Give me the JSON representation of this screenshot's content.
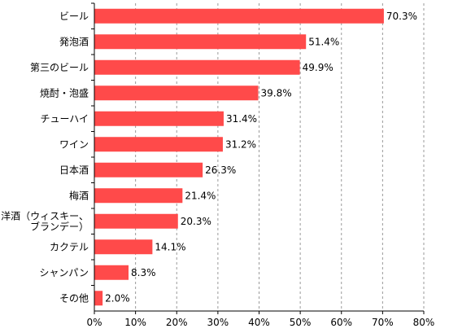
{
  "chart_data": {
    "type": "bar",
    "orientation": "horizontal",
    "categories": [
      "ビール",
      "発泡酒",
      "第三のビール",
      "焼酎・泡盛",
      "チューハイ",
      "ワイン",
      "日本酒",
      "梅酒",
      "洋酒（ウィスキー、ブランデー）",
      "カクテル",
      "シャンパン",
      "その他"
    ],
    "category_lines": [
      [
        "ビール"
      ],
      [
        "発泡酒"
      ],
      [
        "第三のビール"
      ],
      [
        "焼酎・泡盛"
      ],
      [
        "チューハイ"
      ],
      [
        "ワイン"
      ],
      [
        "日本酒"
      ],
      [
        "梅酒"
      ],
      [
        "洋酒（ウィスキー、",
        "ブランデー）"
      ],
      [
        "カクテル"
      ],
      [
        "シャンパン"
      ],
      [
        "その他"
      ]
    ],
    "values": [
      70.3,
      51.4,
      49.9,
      39.8,
      31.4,
      31.2,
      26.3,
      21.4,
      20.3,
      14.1,
      8.3,
      2.0
    ],
    "value_labels": [
      "70.3%",
      "51.4%",
      "49.9%",
      "39.8%",
      "31.4%",
      "31.2%",
      "26.3%",
      "21.4%",
      "20.3%",
      "14.1%",
      "8.3%",
      "2.0%"
    ],
    "xlim": [
      0,
      80
    ],
    "x_ticks": [
      0,
      10,
      20,
      30,
      40,
      50,
      60,
      70,
      80
    ],
    "x_tick_labels": [
      "0%",
      "10%",
      "20%",
      "30%",
      "40%",
      "50%",
      "60%",
      "70%",
      "80%"
    ],
    "title": "",
    "xlabel": "",
    "ylabel": "",
    "grid": "vertical dashed",
    "legend": "none",
    "bar_color": "#ff4a4a",
    "grid_color": "#9a9a9a",
    "axis_color": "#000000"
  }
}
